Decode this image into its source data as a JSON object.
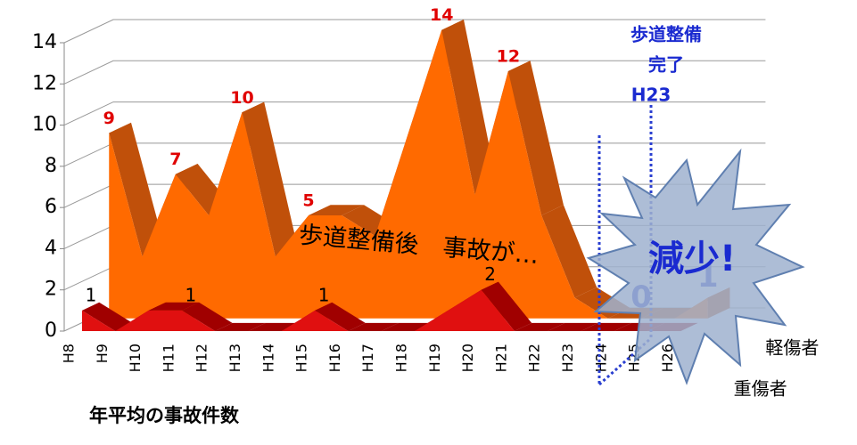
{
  "chart_data": {
    "type": "area3d",
    "categories": [
      "H8",
      "H9",
      "H10",
      "H11",
      "H12",
      "H13",
      "H14",
      "H15",
      "H16",
      "H17",
      "H18",
      "H19",
      "H20",
      "H21",
      "H22",
      "H23",
      "H24",
      "H25",
      "H26"
    ],
    "series": [
      {
        "name": "軽傷者",
        "color": "#ff6a00",
        "top_color": "#c0500a",
        "values": [
          9,
          3,
          7,
          5,
          10,
          3,
          5,
          5,
          4,
          9,
          14,
          6,
          12,
          5,
          1,
          0,
          0,
          0,
          1
        ],
        "value_labels": [
          "9",
          null,
          "7",
          null,
          "10",
          null,
          "5",
          null,
          null,
          null,
          "14",
          null,
          "12",
          null,
          null,
          null,
          "0",
          null,
          "1"
        ],
        "value_label_colors": [
          "#e00000",
          null,
          "#e00000",
          null,
          "#e00000",
          null,
          "#e00000",
          null,
          null,
          null,
          "#e00000",
          null,
          "#e00000",
          null,
          null,
          null,
          "#2a3fd0",
          null,
          "#2a3fd0"
        ]
      },
      {
        "name": "重傷者",
        "color": "#e01010",
        "top_color": "#a00000",
        "values": [
          1,
          0,
          1,
          1,
          0,
          0,
          0,
          1,
          0,
          0,
          0,
          1,
          2,
          0,
          0,
          0,
          0,
          0,
          0
        ],
        "value_labels": [
          "1",
          null,
          null,
          "1",
          null,
          null,
          null,
          "1",
          null,
          null,
          null,
          null,
          "2",
          null,
          null,
          null,
          null,
          null,
          null
        ],
        "value_label_colors": [
          "#000000",
          null,
          null,
          "#000000",
          null,
          null,
          null,
          "#000000",
          null,
          null,
          null,
          null,
          "#000000",
          null,
          null,
          null,
          null,
          null,
          null
        ]
      }
    ],
    "ylim": [
      0,
      14
    ],
    "yticks": [
      0,
      2,
      4,
      6,
      8,
      10,
      12,
      14
    ],
    "grid": true,
    "annotations": {
      "completion": [
        "歩道整備",
        "完了",
        "H23"
      ],
      "message": "歩道整備後　事故が…",
      "burst": "減少!"
    },
    "caption": "年平均の事故件数"
  }
}
